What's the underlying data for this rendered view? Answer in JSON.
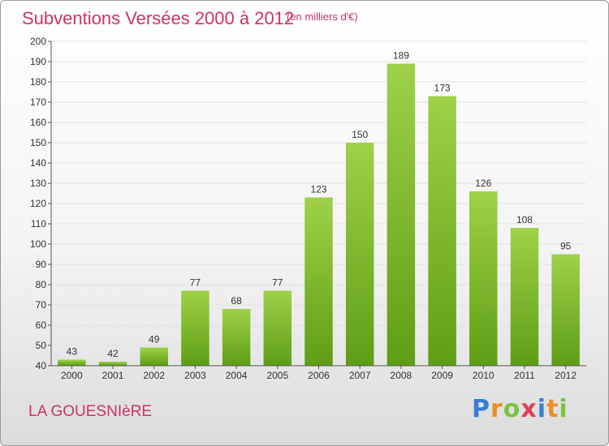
{
  "title": "Subventions Versées 2000 à 2012",
  "subtitle": "(en milliers d'€)",
  "commune": "LA GOUESNIèRE",
  "logo": {
    "text": "Proxiti",
    "letter_colors": [
      "#3a7fd0",
      "#e8902a",
      "#7cc242",
      "#e2405a",
      "#3a7fd0",
      "#e8902a",
      "#7cc242"
    ]
  },
  "colors": {
    "bar_top": "#9fd14a",
    "bar_bottom": "#5e9e14",
    "title": "#d0306a",
    "grid": "#e2e2e2",
    "axis": "#555555"
  },
  "chart_data": {
    "type": "bar",
    "categories": [
      "2000",
      "2001",
      "2002",
      "2003",
      "2004",
      "2005",
      "2006",
      "2007",
      "2008",
      "2009",
      "2010",
      "2011",
      "2012"
    ],
    "values": [
      43,
      42,
      49,
      77,
      68,
      77,
      123,
      150,
      189,
      173,
      126,
      108,
      95
    ],
    "ylim": [
      40,
      200
    ],
    "yticks": [
      40,
      50,
      60,
      70,
      80,
      90,
      100,
      110,
      120,
      130,
      140,
      150,
      160,
      170,
      180,
      190,
      200
    ],
    "grid": true,
    "legend": "none"
  }
}
